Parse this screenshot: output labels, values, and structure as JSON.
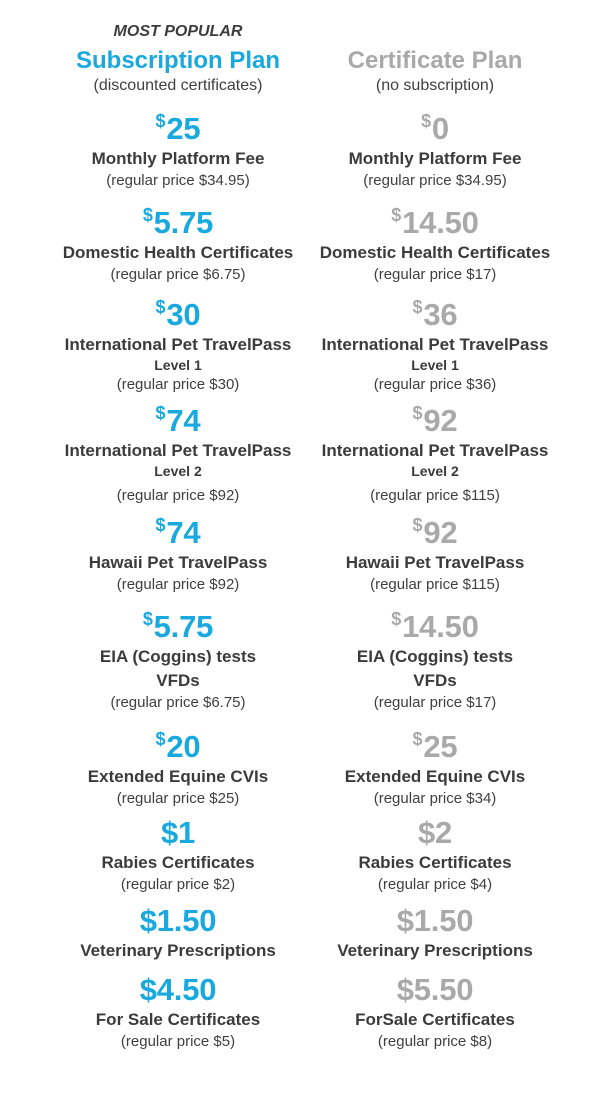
{
  "left": {
    "eyebrow": "MOST POPULAR",
    "title": "Subscription Plan",
    "subtitle": "(discounted certificates)",
    "items": [
      {
        "symbol": "$",
        "amount": "25",
        "label": "Monthly Platform Fee",
        "regular": "(regular price $34.95)"
      },
      {
        "symbol": "$",
        "amount": "5.75",
        "label": "Domestic Health Certificates",
        "regular": "(regular price $6.75)"
      },
      {
        "symbol": "$",
        "amount": "30",
        "label": "International Pet TravelPass",
        "level": "Level 1",
        "regular": "(regular price $30)"
      },
      {
        "symbol": "$",
        "amount": "74",
        "label": "International Pet TravelPass",
        "level": "Level 2",
        "regular": "(regular price $92)"
      },
      {
        "symbol": "$",
        "amount": "74",
        "label": "Hawaii Pet TravelPass",
        "regular": "(regular price $92)"
      },
      {
        "symbol": "$",
        "amount": "5.75",
        "label": "EIA (Coggins) tests",
        "label2": "VFDs",
        "regular": "(regular price $6.75)"
      },
      {
        "symbol": "$",
        "amount": "20",
        "label": "Extended Equine CVIs",
        "regular": "(regular price $25)"
      },
      {
        "amount": "$1",
        "label": "Rabies Certificates",
        "regular": "(regular price $2)"
      },
      {
        "amount": "$1.50",
        "label": "Veterinary Prescriptions"
      },
      {
        "amount": "$4.50",
        "label": "For Sale Certificates",
        "regular": "(regular price $5)"
      }
    ]
  },
  "right": {
    "title": "Certificate Plan",
    "subtitle": "(no subscription)",
    "items": [
      {
        "symbol": "$",
        "amount": "0",
        "label": "Monthly Platform Fee",
        "regular": "(regular price $34.95)"
      },
      {
        "symbol": "$",
        "amount": "14.50",
        "label": "Domestic Health Certificates",
        "regular": "(regular price $17)"
      },
      {
        "symbol": "$",
        "amount": "36",
        "label": "International Pet TravelPass",
        "level": "Level 1",
        "regular": "(regular price $36)"
      },
      {
        "symbol": "$",
        "amount": "92",
        "label": "International Pet TravelPass",
        "level": "Level 2",
        "regular": "(regular price $115)"
      },
      {
        "symbol": "$",
        "amount": "92",
        "label": "Hawaii Pet TravelPass",
        "regular": "(regular price $115)"
      },
      {
        "symbol": "$",
        "amount": "14.50",
        "label": "EIA (Coggins) tests",
        "label2": "VFDs",
        "regular": "(regular price $17)"
      },
      {
        "symbol": "$",
        "amount": "25",
        "label": "Extended Equine CVIs",
        "regular": "(regular price $34)"
      },
      {
        "amount": "$2",
        "label": "Rabies Certificates",
        "regular": "(regular price $4)"
      },
      {
        "amount": "$1.50",
        "label": "Veterinary Prescriptions"
      },
      {
        "amount": "$5.50",
        "label": "ForSale Certificates",
        "regular": "(regular price $8)"
      }
    ]
  },
  "colors": {
    "subscription_accent": "#1aa9df",
    "certificate_accent": "#a9a9a9",
    "text": "#3b3b3b"
  }
}
